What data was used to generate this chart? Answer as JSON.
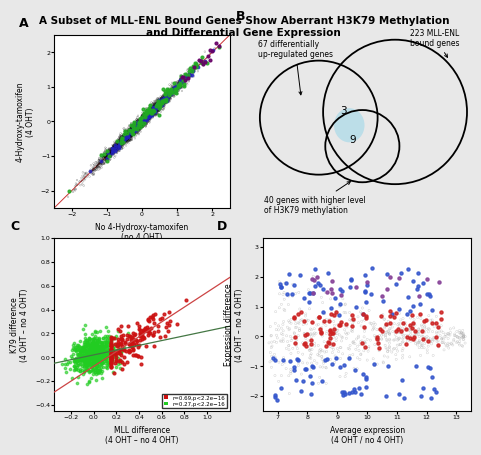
{
  "title": "A Subset of MLL-ENL Bound Genes Show Aberrant H3K79 Methylation\nand Differential Gene Expression",
  "title_fontsize": 7.5,
  "bg_color": "#e8e8e8",
  "panel_bg": "#ffffff",
  "panelA": {
    "xlabel": "No 4-Hydroxy-tamoxifen\n(no 4 OHT)",
    "ylabel": "4-Hydroxy-tamoxifen\n(4 OHT)",
    "xlim": [
      -2.5,
      2.5
    ],
    "ylim": [
      -2.5,
      2.5
    ],
    "line_color": "#cc3333"
  },
  "panelB": {
    "label1": "67 differentially\nup-regulated genes",
    "label2": "40 genes with higher level\nof H3K79 methylation",
    "label3": "223 MLL-ENL\nbound genes",
    "num1": "3",
    "num2": "9",
    "intersection_color": "#b8dde8"
  },
  "panelC": {
    "xlabel": "MLL difference\n(4 OHT – no 4 OHT)",
    "ylabel": "K79 difference\n(4 OHT – no 4 OHT)",
    "xlim": [
      -0.35,
      1.2
    ],
    "ylim": [
      -0.45,
      1.0
    ],
    "legend_red": "r=0.69,p<2.2e−16",
    "legend_green": "r=0.27,p<2.2e−16",
    "line_red_slope": 0.62,
    "line_red_intercept": -0.075,
    "line_green_slope": 0.2,
    "line_green_intercept": 0.02
  },
  "panelD": {
    "xlabel": "Average expression\n(4 OHT / no 4 OHT)",
    "ylabel": "Expression difference\n(4 OHT – no 4 OHT)",
    "xlim": [
      6.5,
      13.5
    ],
    "ylim": [
      -2.5,
      3.3
    ]
  }
}
